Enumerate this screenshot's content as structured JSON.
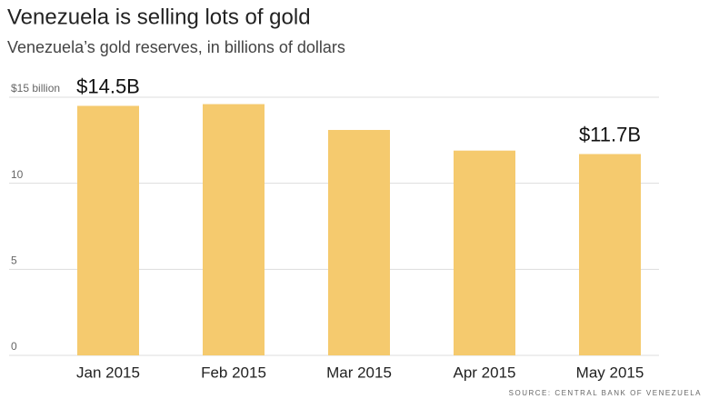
{
  "chart_data": {
    "type": "bar",
    "title": "Venezuela is selling lots of gold",
    "subtitle": "Venezuela’s gold reserves, in billions of dollars",
    "categories": [
      "Jan 2015",
      "Feb 2015",
      "Mar 2015",
      "Apr 2015",
      "May 2015"
    ],
    "values": [
      14.5,
      14.6,
      13.1,
      11.9,
      11.7
    ],
    "value_labels": [
      "$14.5B",
      null,
      null,
      null,
      "$11.7B"
    ],
    "color": "#f5ca6e",
    "ylim": [
      0,
      15
    ],
    "yticks": [
      0,
      5,
      10,
      {
        "value": 15,
        "label": "$15 billion"
      }
    ],
    "grid": true,
    "source": "SOURCE: CENTRAL BANK OF VENEZUELA"
  }
}
